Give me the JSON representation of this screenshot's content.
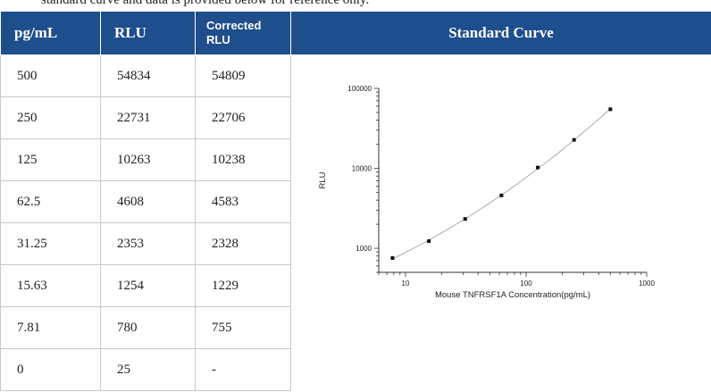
{
  "intro_text": "standard curve and data is provided below for reference only.",
  "table": {
    "headers": [
      "pg/mL",
      "RLU",
      "Corrected RLU"
    ],
    "corrected_header_lines": [
      "Corrected",
      "RLU"
    ],
    "chart_header": "Standard Curve",
    "rows": [
      [
        "500",
        "54834",
        "54809"
      ],
      [
        "250",
        "22731",
        "22706"
      ],
      [
        "125",
        "10263",
        "10238"
      ],
      [
        "62.5",
        "4608",
        "4583"
      ],
      [
        "31.25",
        "2353",
        "2328"
      ],
      [
        "15.63",
        "1254",
        "1229"
      ],
      [
        "7.81",
        "780",
        "755"
      ],
      [
        "0",
        "25",
        "-"
      ]
    ]
  },
  "chart_data": {
    "type": "scatter",
    "x_scale": "log",
    "y_scale": "log",
    "xlabel": "Mouse TNFRSF1A Concentration(pg/mL)",
    "ylabel": "RLU",
    "xlim": [
      6,
      1000
    ],
    "ylim": [
      500,
      100000
    ],
    "x_ticks": [
      10,
      100,
      1000
    ],
    "x_tick_labels": [
      "10",
      "100",
      "1000"
    ],
    "y_ticks": [
      1000,
      10000,
      100000
    ],
    "y_tick_labels": [
      "1000",
      "10000",
      "100000"
    ],
    "x": [
      7.81,
      15.63,
      31.25,
      62.5,
      125,
      250,
      500
    ],
    "y": [
      755,
      1229,
      2328,
      4583,
      10238,
      22706,
      54809
    ],
    "fit_line": true,
    "grid": false,
    "colors": {
      "point": "#111111",
      "curve": "#999999",
      "header_bg": "#1f4e8c"
    }
  }
}
